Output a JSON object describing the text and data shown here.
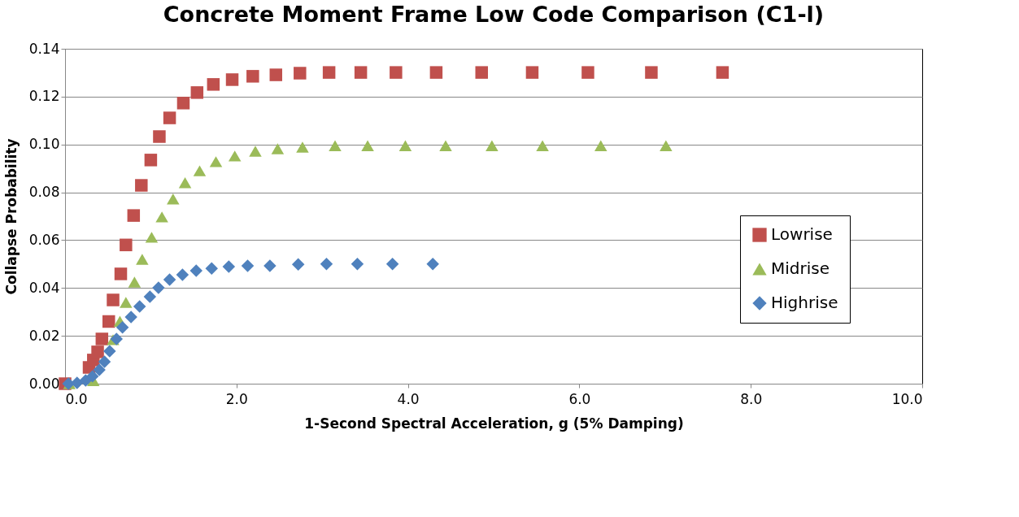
{
  "chart_data": {
    "type": "scatter",
    "title": "Concrete Moment Frame Low Code Comparison (C1-l)",
    "xlabel": "1-Second Spectral Acceleration, g (5% Damping)",
    "ylabel": "Collapse Probability",
    "xlim": [
      0,
      10
    ],
    "ylim": [
      0,
      0.14
    ],
    "xticks": [
      {
        "value": 0,
        "label": "0.0"
      },
      {
        "value": 2,
        "label": "2.0"
      },
      {
        "value": 4,
        "label": "4.0"
      },
      {
        "value": 6,
        "label": "6.0"
      },
      {
        "value": 8,
        "label": "8.0"
      },
      {
        "value": 10,
        "label": "10.0"
      }
    ],
    "yticks": [
      {
        "value": 0,
        "label": "0.00"
      },
      {
        "value": 0.02,
        "label": "0.02"
      },
      {
        "value": 0.04,
        "label": "0.04"
      },
      {
        "value": 0.06,
        "label": "0.06"
      },
      {
        "value": 0.08,
        "label": "0.08"
      },
      {
        "value": 0.1,
        "label": "0.10"
      },
      {
        "value": 0.12,
        "label": "0.12"
      },
      {
        "value": 0.14,
        "label": "0.14"
      }
    ],
    "grid": "y",
    "legend": "right",
    "series": [
      {
        "name": "Lowrise",
        "color": "#c0504d",
        "marker": "square",
        "x": [
          0.0,
          0.28,
          0.33,
          0.38,
          0.43,
          0.51,
          0.56,
          0.65,
          0.71,
          0.8,
          0.89,
          1.0,
          1.1,
          1.22,
          1.38,
          1.54,
          1.73,
          1.95,
          2.19,
          2.46,
          2.74,
          3.08,
          3.45,
          3.86,
          4.33,
          4.86,
          5.45,
          6.1,
          6.84,
          7.67
        ],
        "values": [
          0.0,
          0.0068,
          0.0099,
          0.0133,
          0.0187,
          0.026,
          0.035,
          0.0459,
          0.058,
          0.0703,
          0.0829,
          0.0935,
          0.1033,
          0.1111,
          0.1173,
          0.1217,
          0.1251,
          0.1271,
          0.1285,
          0.1291,
          0.1298,
          0.1301,
          0.1301,
          0.1301,
          0.1301,
          0.1301,
          0.1301,
          0.1301,
          0.1301,
          0.1301
        ]
      },
      {
        "name": "Midrise",
        "color": "#9bbb59",
        "marker": "triangle",
        "x": [
          0.05,
          0.33,
          0.56,
          0.64,
          0.71,
          0.81,
          0.9,
          1.01,
          1.13,
          1.26,
          1.4,
          1.57,
          1.76,
          1.98,
          2.22,
          2.48,
          2.77,
          3.15,
          3.53,
          3.97,
          4.44,
          4.98,
          5.57,
          6.25,
          7.01
        ],
        "values": [
          0.0,
          0.0013,
          0.0184,
          0.0261,
          0.034,
          0.0425,
          0.052,
          0.0612,
          0.0697,
          0.0772,
          0.084,
          0.089,
          0.0928,
          0.0952,
          0.0972,
          0.0982,
          0.0989,
          0.0995,
          0.0995,
          0.0995,
          0.0995,
          0.0995,
          0.0995,
          0.0995,
          0.0995
        ]
      },
      {
        "name": "Highrise",
        "color": "#4f81bd",
        "marker": "diamond",
        "x": [
          0.04,
          0.14,
          0.24,
          0.32,
          0.4,
          0.46,
          0.52,
          0.6,
          0.67,
          0.77,
          0.87,
          0.99,
          1.09,
          1.22,
          1.37,
          1.53,
          1.71,
          1.91,
          2.13,
          2.39,
          2.72,
          3.05,
          3.41,
          3.82,
          4.29
        ],
        "values": [
          0.0,
          0.0003,
          0.0014,
          0.0031,
          0.0058,
          0.0092,
          0.0136,
          0.0187,
          0.0235,
          0.0279,
          0.0323,
          0.0364,
          0.0401,
          0.0435,
          0.0455,
          0.0472,
          0.0482,
          0.0489,
          0.0493,
          0.0493,
          0.0499,
          0.05,
          0.05,
          0.05,
          0.05
        ]
      }
    ]
  }
}
